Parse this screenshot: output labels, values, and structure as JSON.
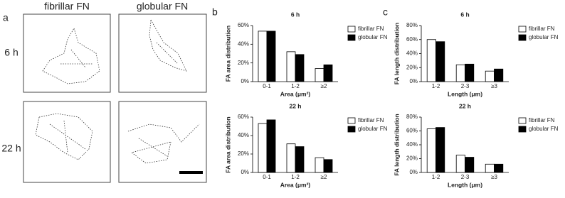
{
  "panel_a": {
    "label": "a",
    "columns": [
      "fibrillar FN",
      "globular FN"
    ],
    "rows": [
      "6 h",
      "22 h"
    ]
  },
  "panel_labels": [
    "b",
    "c"
  ],
  "chart_data": [
    {
      "type": "bar",
      "title": "6 h",
      "ylabel": "FA area distribution",
      "xlabel": "Area (μm²)",
      "categories": [
        "0-1",
        "1-2",
        "≥2"
      ],
      "series": [
        {
          "name": "fibrillar FN",
          "color": "#ffffff",
          "values": [
            54,
            32,
            14
          ]
        },
        {
          "name": "globular FN",
          "color": "#000000",
          "values": [
            54,
            29,
            18
          ]
        }
      ],
      "ylim": [
        0,
        60
      ],
      "yticks": [
        {
          "value": 0,
          "label": "0%"
        },
        {
          "value": 20,
          "label": "20%"
        },
        {
          "value": 40,
          "label": "40%"
        },
        {
          "value": 60,
          "label": "60%"
        }
      ],
      "legend": "right"
    },
    {
      "type": "bar",
      "title": "22 h",
      "ylabel": "FA area distribution",
      "xlabel": "Area (μm²)",
      "categories": [
        "0-1",
        "1-2",
        "≥2"
      ],
      "series": [
        {
          "name": "fibrillar FN",
          "color": "#ffffff",
          "values": [
            53,
            31,
            16
          ]
        },
        {
          "name": "globular FN",
          "color": "#000000",
          "values": [
            57,
            28,
            14
          ]
        }
      ],
      "ylim": [
        0,
        60
      ],
      "yticks": [
        {
          "value": 0,
          "label": "0%"
        },
        {
          "value": 20,
          "label": "20%"
        },
        {
          "value": 40,
          "label": "40%"
        },
        {
          "value": 60,
          "label": "60%"
        }
      ],
      "legend": "right"
    },
    {
      "type": "bar",
      "title": "6 h",
      "ylabel": "FA length distribution",
      "xlabel": "Length (μm)",
      "categories": [
        "1-2",
        "2-3",
        "≥3"
      ],
      "series": [
        {
          "name": "fibrillar FN",
          "color": "#ffffff",
          "values": [
            60,
            24,
            15
          ]
        },
        {
          "name": "globular FN",
          "color": "#000000",
          "values": [
            57,
            25,
            18
          ]
        }
      ],
      "ylim": [
        0,
        80
      ],
      "yticks": [
        {
          "value": 0,
          "label": "0%"
        },
        {
          "value": 20,
          "label": "20%"
        },
        {
          "value": 40,
          "label": "40%"
        },
        {
          "value": 60,
          "label": "60%"
        },
        {
          "value": 80,
          "label": "80%"
        }
      ],
      "legend": "right"
    },
    {
      "type": "bar",
      "title": "22 h",
      "ylabel": "FA length distribution",
      "xlabel": "Length (μm)",
      "categories": [
        "1-2",
        "2-3",
        "≥3"
      ],
      "series": [
        {
          "name": "fibrillar FN",
          "color": "#ffffff",
          "values": [
            63,
            25,
            12
          ]
        },
        {
          "name": "globular FN",
          "color": "#000000",
          "values": [
            65,
            22,
            12
          ]
        }
      ],
      "ylim": [
        0,
        80
      ],
      "yticks": [
        {
          "value": 0,
          "label": "0%"
        },
        {
          "value": 20,
          "label": "20%"
        },
        {
          "value": 40,
          "label": "40%"
        },
        {
          "value": 60,
          "label": "60%"
        },
        {
          "value": 80,
          "label": "80%"
        }
      ],
      "legend": "right"
    }
  ]
}
